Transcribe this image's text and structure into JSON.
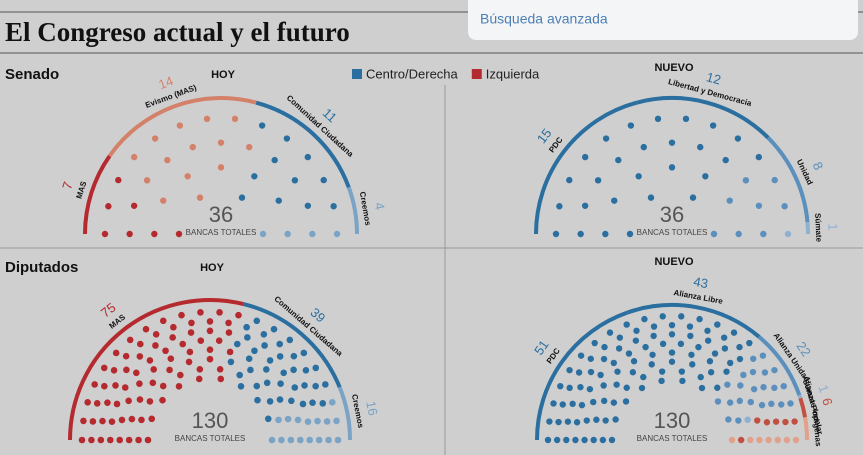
{
  "page": {
    "search_link": "Búsqueda avanzada",
    "title": "El Congreso actual y el futuro",
    "sections": [
      "Senado",
      "Diputados"
    ],
    "legend": [
      {
        "name": "Centro/Derecha",
        "color": "#2a6f9f"
      },
      {
        "name": "Izquierda",
        "color": "#b52a2e"
      }
    ]
  },
  "chart_data": [
    {
      "type": "parliament",
      "title": "HOY",
      "total": 36,
      "total_label": "BANCAS TOTALES",
      "categories": [
        "MAS",
        "Evismo (MAS)",
        "Comunidad Ciudadana",
        "Creemos"
      ],
      "values": [
        7,
        14,
        11,
        4
      ],
      "colors": [
        "#b52a2e",
        "#d4816a",
        "#2a6f9f",
        "#7aa3c6"
      ]
    },
    {
      "type": "parliament",
      "title": "NUEVO",
      "total": 36,
      "total_label": "BANCAS TOTALES",
      "categories": [
        "PDC",
        "Libertad y Democracia",
        "Unidad",
        "Súmate"
      ],
      "values": [
        15,
        12,
        8,
        1
      ],
      "colors": [
        "#2a6f9f",
        "#2a6f9f",
        "#5b8fbd",
        "#8fb0cf"
      ]
    },
    {
      "type": "parliament",
      "title": "HOY",
      "total": 130,
      "total_label": "BANCAS TOTALES",
      "categories": [
        "MAS",
        "Comunidad Ciudadana",
        "Creemos"
      ],
      "values": [
        75,
        39,
        16
      ],
      "colors": [
        "#b52a2e",
        "#2a6f9f",
        "#7aa3c6"
      ]
    },
    {
      "type": "parliament",
      "title": "NUEVO",
      "total": 130,
      "total_label": "BANCAS TOTALES",
      "categories": [
        "PDC",
        "Alianza Libre",
        "Alianza Unidad",
        "Súmate",
        "Alianza Popular",
        "Indígenas"
      ],
      "values": [
        51,
        43,
        22,
        1,
        6,
        7
      ],
      "value_labels": [
        "51",
        "43",
        "22",
        "1",
        "6",
        null
      ],
      "colors": [
        "#2a6f9f",
        "#2a6f9f",
        "#5b8fbd",
        "#8fb0cf",
        "#c0503f",
        "#e0a08a"
      ]
    }
  ]
}
